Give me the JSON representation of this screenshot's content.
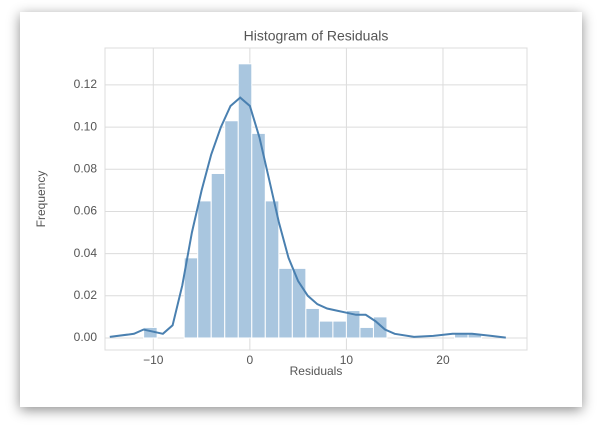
{
  "chart_data": {
    "type": "histogram",
    "title": "Histogram of Residuals",
    "x_label": "Residuals",
    "y_label": "Frequency",
    "bins": [
      -11,
      -9.6,
      -8.2,
      -6.8,
      -5.4,
      -4,
      -2.6,
      -1.2,
      0.2,
      1.6,
      3,
      4.4,
      5.8,
      7.2,
      8.6,
      10,
      11.4,
      12.8,
      14.2,
      15.6,
      17,
      18.4,
      19.8,
      21.2,
      22.6,
      24
    ],
    "values": [
      0.005,
      0,
      0,
      0.038,
      0.065,
      0.078,
      0.103,
      0.13,
      0.097,
      0.065,
      0.033,
      0.033,
      0.014,
      0.008,
      0.008,
      0.013,
      0.005,
      0.01,
      0,
      0,
      0,
      0,
      0,
      0.002,
      0.002
    ],
    "color": "#a9c6df",
    "kde": {
      "color": "#4a80b0",
      "x": [
        -14.5,
        -12,
        -11,
        -10,
        -9,
        -8,
        -7,
        -6,
        -5,
        -4,
        -3,
        -2,
        -1,
        0,
        1,
        2,
        3,
        4,
        5,
        6,
        7,
        8,
        9,
        10,
        11,
        12,
        13,
        14,
        15,
        17,
        19,
        21,
        23,
        25,
        26.5
      ],
      "y": [
        0.0005,
        0.002,
        0.004,
        0.003,
        0.002,
        0.006,
        0.025,
        0.05,
        0.07,
        0.087,
        0.1,
        0.11,
        0.114,
        0.11,
        0.095,
        0.075,
        0.055,
        0.038,
        0.027,
        0.02,
        0.016,
        0.014,
        0.013,
        0.012,
        0.011,
        0.011,
        0.008,
        0.004,
        0.002,
        0.0005,
        0.001,
        0.002,
        0.002,
        0.001,
        0.0002
      ]
    },
    "xlim": [
      -15,
      28.7
    ],
    "ylim": [
      -0.0057,
      0.1375
    ],
    "xticks": [
      {
        "value": -10,
        "label": "−10"
      },
      0,
      10,
      20
    ],
    "yticks": [
      {
        "value": 0,
        "label": "0.00"
      },
      {
        "value": 0.02,
        "label": "0.02"
      },
      {
        "value": 0.04,
        "label": "0.04"
      },
      {
        "value": 0.06,
        "label": "0.06"
      },
      {
        "value": 0.08,
        "label": "0.08"
      },
      {
        "value": 0.1,
        "label": "0.10"
      },
      {
        "value": 0.12,
        "label": "0.12"
      }
    ],
    "grid": true
  }
}
